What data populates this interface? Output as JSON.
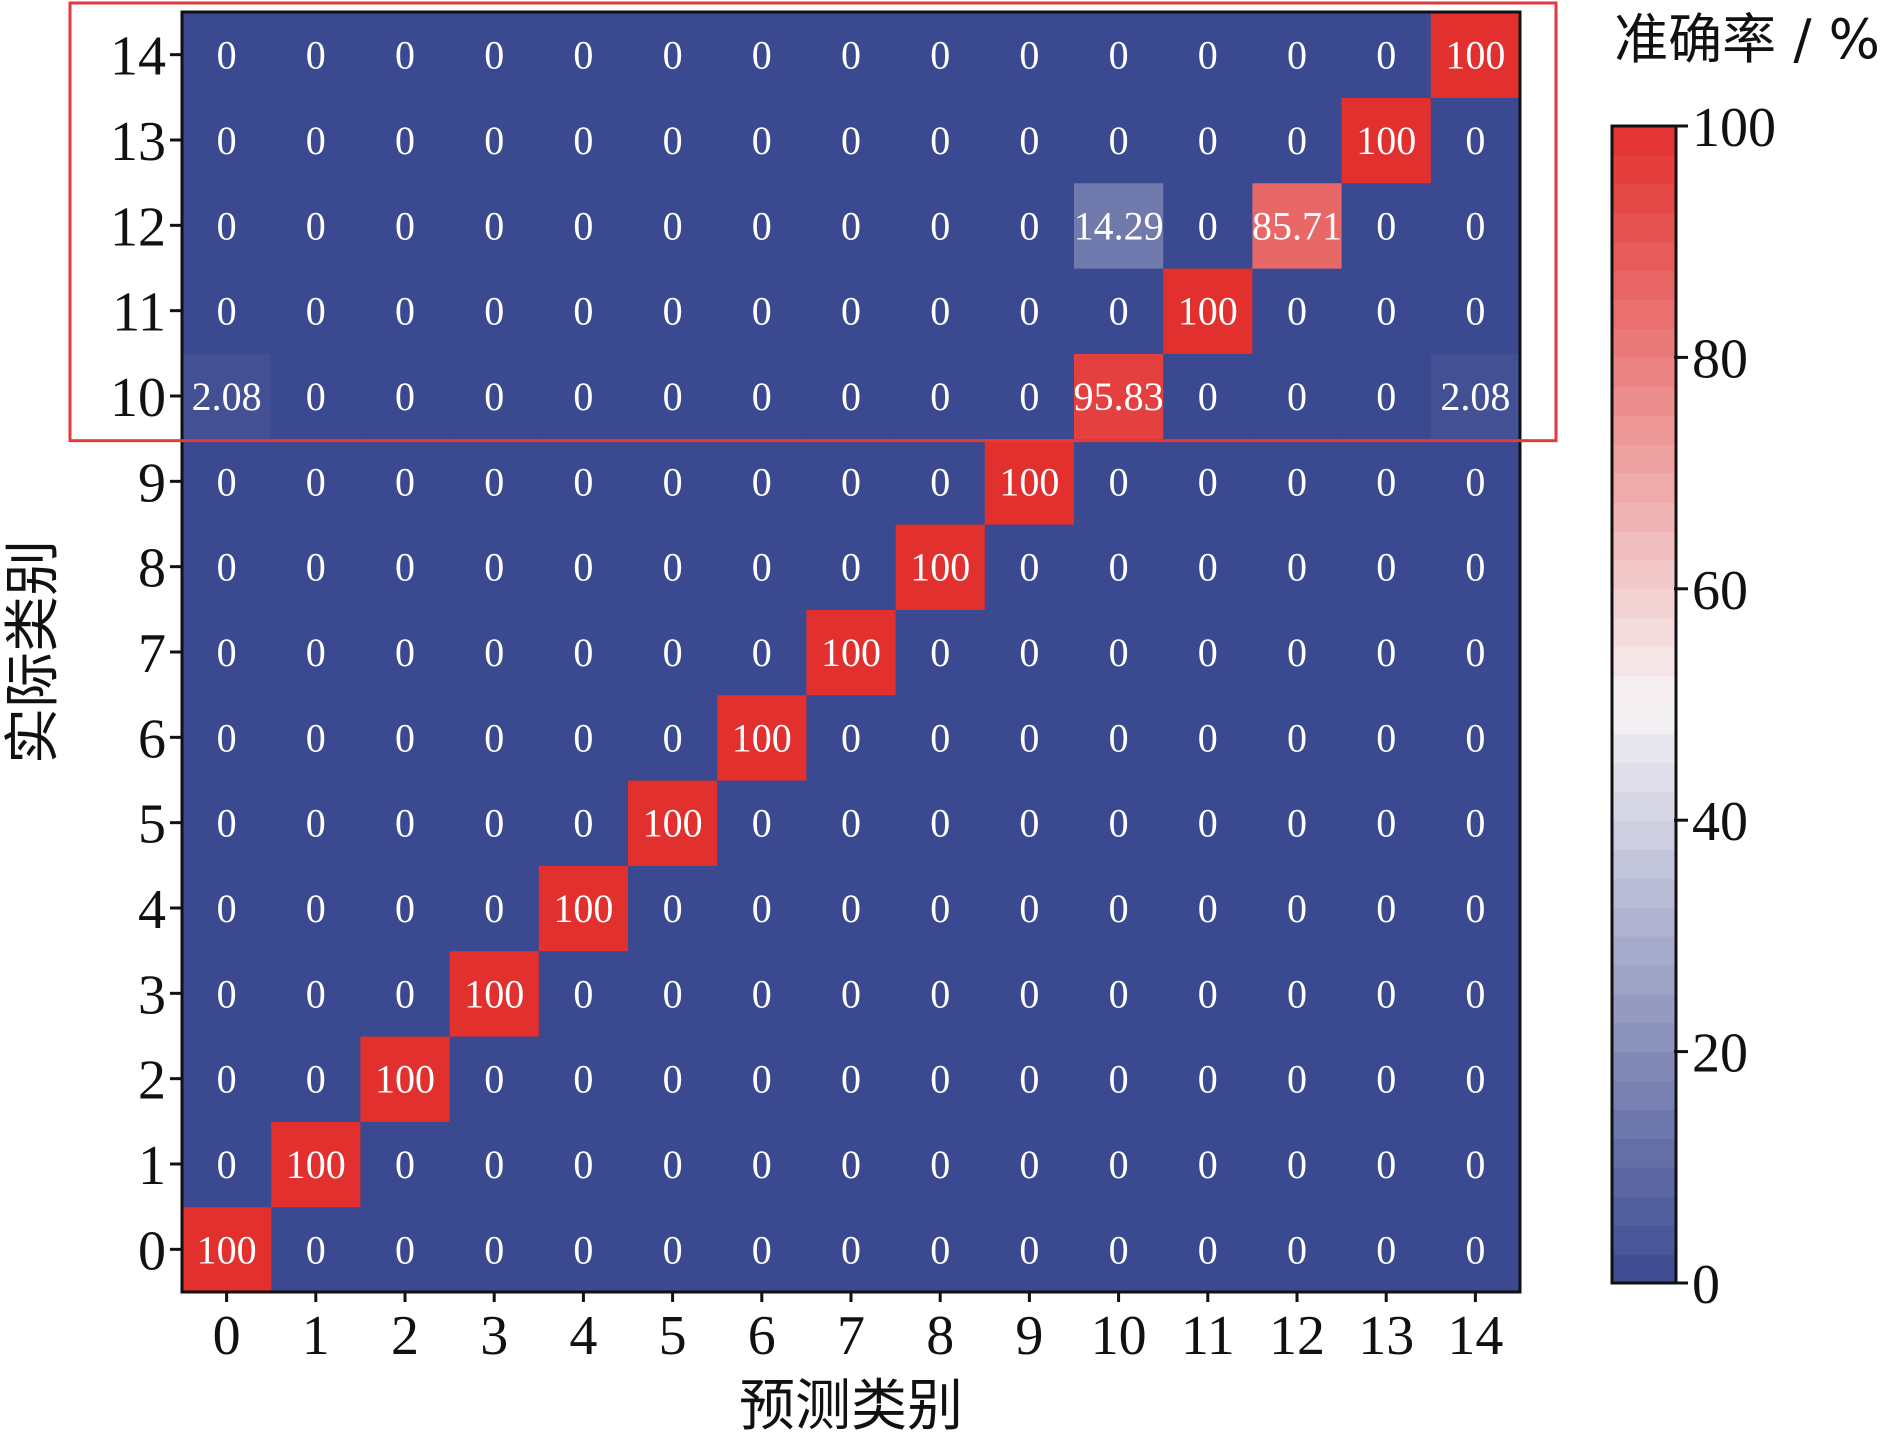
{
  "chart_data": {
    "type": "heatmap",
    "title": "",
    "xlabel": "预测类别",
    "ylabel": "实际类别",
    "x_categories": [
      "0",
      "1",
      "2",
      "3",
      "4",
      "5",
      "6",
      "7",
      "8",
      "9",
      "10",
      "11",
      "12",
      "13",
      "14"
    ],
    "y_categories": [
      "0",
      "1",
      "2",
      "3",
      "4",
      "5",
      "6",
      "7",
      "8",
      "9",
      "10",
      "11",
      "12",
      "13",
      "14"
    ],
    "values": [
      [
        "100",
        "0",
        "0",
        "0",
        "0",
        "0",
        "0",
        "0",
        "0",
        "0",
        "0",
        "0",
        "0",
        "0",
        "0"
      ],
      [
        "0",
        "100",
        "0",
        "0",
        "0",
        "0",
        "0",
        "0",
        "0",
        "0",
        "0",
        "0",
        "0",
        "0",
        "0"
      ],
      [
        "0",
        "0",
        "100",
        "0",
        "0",
        "0",
        "0",
        "0",
        "0",
        "0",
        "0",
        "0",
        "0",
        "0",
        "0"
      ],
      [
        "0",
        "0",
        "0",
        "100",
        "0",
        "0",
        "0",
        "0",
        "0",
        "0",
        "0",
        "0",
        "0",
        "0",
        "0"
      ],
      [
        "0",
        "0",
        "0",
        "0",
        "100",
        "0",
        "0",
        "0",
        "0",
        "0",
        "0",
        "0",
        "0",
        "0",
        "0"
      ],
      [
        "0",
        "0",
        "0",
        "0",
        "0",
        "100",
        "0",
        "0",
        "0",
        "0",
        "0",
        "0",
        "0",
        "0",
        "0"
      ],
      [
        "0",
        "0",
        "0",
        "0",
        "0",
        "0",
        "100",
        "0",
        "0",
        "0",
        "0",
        "0",
        "0",
        "0",
        "0"
      ],
      [
        "0",
        "0",
        "0",
        "0",
        "0",
        "0",
        "0",
        "100",
        "0",
        "0",
        "0",
        "0",
        "0",
        "0",
        "0"
      ],
      [
        "0",
        "0",
        "0",
        "0",
        "0",
        "0",
        "0",
        "0",
        "100",
        "0",
        "0",
        "0",
        "0",
        "0",
        "0"
      ],
      [
        "0",
        "0",
        "0",
        "0",
        "0",
        "0",
        "0",
        "0",
        "0",
        "100",
        "0",
        "0",
        "0",
        "0",
        "0"
      ],
      [
        "2.08",
        "0",
        "0",
        "0",
        "0",
        "0",
        "0",
        "0",
        "0",
        "0",
        "95.83",
        "0",
        "0",
        "0",
        "2.08"
      ],
      [
        "0",
        "0",
        "0",
        "0",
        "0",
        "0",
        "0",
        "0",
        "0",
        "0",
        "0",
        "100",
        "0",
        "0",
        "0"
      ],
      [
        "0",
        "0",
        "0",
        "0",
        "0",
        "0",
        "0",
        "0",
        "0",
        "0",
        "14.29",
        "0",
        "85.71",
        "0",
        "0"
      ],
      [
        "0",
        "0",
        "0",
        "0",
        "0",
        "0",
        "0",
        "0",
        "0",
        "0",
        "0",
        "0",
        "0",
        "100",
        "0"
      ],
      [
        "0",
        "0",
        "0",
        "0",
        "0",
        "0",
        "0",
        "0",
        "0",
        "0",
        "0",
        "0",
        "0",
        "0",
        "100"
      ]
    ],
    "colorbar": {
      "title": "准确率 / %",
      "range": [
        0,
        100
      ],
      "ticks": [
        "0",
        "20",
        "40",
        "60",
        "80",
        "100"
      ],
      "colors": {
        "low": "#3b4990",
        "mid": "#f7f4f6",
        "high": "#e2302e"
      }
    },
    "highlight": {
      "rows": [
        "10",
        "14"
      ],
      "color": "#e23a3f"
    }
  }
}
